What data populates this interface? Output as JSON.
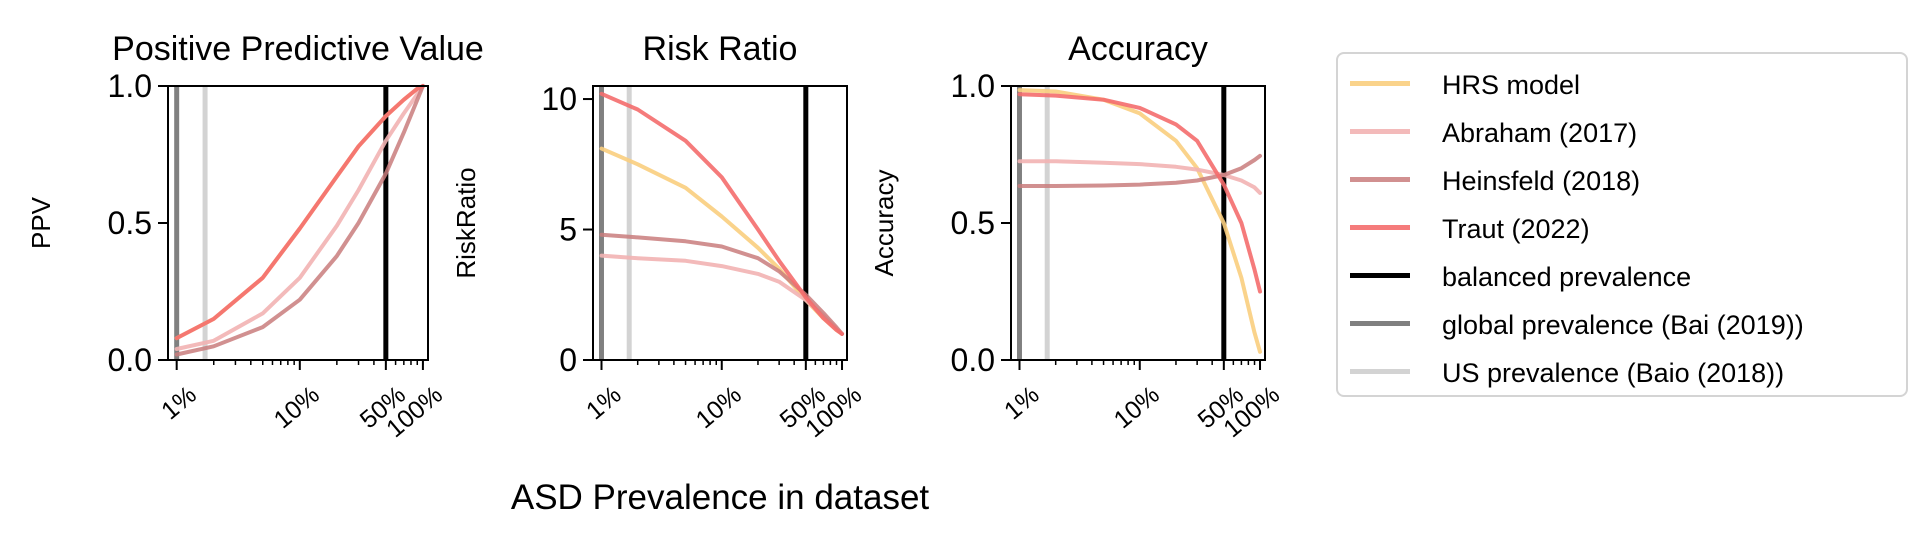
{
  "figure": {
    "xlabel": "ASD Prevalence in dataset"
  },
  "legend": {
    "placement": "right",
    "entries": [
      {
        "label": "HRS model",
        "color": "#f9ce7e",
        "opacity": 0.9
      },
      {
        "label": "Abraham (2017)",
        "color": "#f2b3b3",
        "opacity": 0.9
      },
      {
        "label": "Heinsfeld (2018)",
        "color": "#c97d7d",
        "opacity": 0.85
      },
      {
        "label": "Traut (2022)",
        "color": "#f46d6d",
        "opacity": 0.9
      },
      {
        "label": "balanced prevalence",
        "color": "#000000",
        "opacity": 1
      },
      {
        "label": "global prevalence (Bai (2019))",
        "color": "#808080",
        "opacity": 1
      },
      {
        "label": "US prevalence (Baio (2018))",
        "color": "#d3d3d3",
        "opacity": 1
      }
    ]
  },
  "chart_data": [
    {
      "type": "line",
      "title": "Positive Predictive Value",
      "xlabel": "",
      "ylabel": "PPV",
      "xscale": "log",
      "xlim": [
        0.85,
        110
      ],
      "ylim": [
        0,
        1
      ],
      "xticks": [
        {
          "value": 1,
          "label": "1%"
        },
        {
          "value": 10,
          "label": "10%"
        },
        {
          "value": 50,
          "label": "50%"
        },
        {
          "value": 100,
          "label": "100%"
        }
      ],
      "yticks": [
        {
          "value": 0,
          "label": "0.0"
        },
        {
          "value": 0.5,
          "label": "0.5"
        },
        {
          "value": 1,
          "label": "1.0"
        }
      ],
      "vlines": [
        {
          "x": 50,
          "color": "#000000",
          "legend": "balanced prevalence"
        },
        {
          "x": 1.0,
          "color": "#808080",
          "legend": "global prevalence (Bai (2019))"
        },
        {
          "x": 1.7,
          "color": "#d3d3d3",
          "legend": "US prevalence (Baio (2018))"
        }
      ],
      "series": [
        {
          "name": "HRS model",
          "x": [
            1,
            2,
            5,
            10,
            20,
            30,
            50,
            70,
            90,
            100
          ],
          "y": [
            0.08,
            0.15,
            0.3,
            0.48,
            0.67,
            0.78,
            0.89,
            0.95,
            0.99,
            1.0
          ]
        },
        {
          "name": "Abraham (2017)",
          "x": [
            1,
            2,
            5,
            10,
            20,
            30,
            50,
            70,
            90,
            100
          ],
          "y": [
            0.04,
            0.07,
            0.17,
            0.3,
            0.49,
            0.62,
            0.8,
            0.9,
            0.97,
            1.0
          ]
        },
        {
          "name": "Heinsfeld (2018)",
          "x": [
            1,
            2,
            5,
            10,
            20,
            30,
            50,
            70,
            90,
            100
          ],
          "y": [
            0.02,
            0.05,
            0.12,
            0.22,
            0.38,
            0.5,
            0.68,
            0.83,
            0.95,
            1.0
          ]
        },
        {
          "name": "Traut (2022)",
          "x": [
            1,
            2,
            5,
            10,
            20,
            30,
            50,
            70,
            90,
            100
          ],
          "y": [
            0.08,
            0.15,
            0.3,
            0.48,
            0.67,
            0.78,
            0.89,
            0.95,
            0.99,
            1.0
          ]
        }
      ]
    },
    {
      "type": "line",
      "title": "Risk Ratio",
      "xlabel": "",
      "ylabel": "RiskRatio",
      "xscale": "log",
      "xlim": [
        0.85,
        110
      ],
      "ylim": [
        0,
        10.5
      ],
      "xticks": [
        {
          "value": 1,
          "label": "1%"
        },
        {
          "value": 10,
          "label": "10%"
        },
        {
          "value": 50,
          "label": "50%"
        },
        {
          "value": 100,
          "label": "100%"
        }
      ],
      "yticks": [
        {
          "value": 0,
          "label": "0"
        },
        {
          "value": 5,
          "label": "5"
        },
        {
          "value": 10,
          "label": "10"
        }
      ],
      "vlines": [
        {
          "x": 50,
          "color": "#000000",
          "legend": "balanced prevalence"
        },
        {
          "x": 1.0,
          "color": "#808080",
          "legend": "global prevalence (Bai (2019))"
        },
        {
          "x": 1.7,
          "color": "#d3d3d3",
          "legend": "US prevalence (Baio (2018))"
        }
      ],
      "series": [
        {
          "name": "HRS model",
          "x": [
            1,
            2,
            5,
            10,
            20,
            30,
            50,
            70,
            90,
            100
          ],
          "y": [
            8.1,
            7.5,
            6.6,
            5.5,
            4.3,
            3.5,
            2.3,
            1.6,
            1.15,
            1.0
          ]
        },
        {
          "name": "Abraham (2017)",
          "x": [
            1,
            2,
            5,
            10,
            20,
            30,
            50,
            70,
            90,
            100
          ],
          "y": [
            4.0,
            3.9,
            3.8,
            3.6,
            3.3,
            3.0,
            2.3,
            1.7,
            1.2,
            1.0
          ]
        },
        {
          "name": "Heinsfeld (2018)",
          "x": [
            1,
            2,
            5,
            10,
            20,
            30,
            50,
            70,
            90,
            100
          ],
          "y": [
            4.8,
            4.7,
            4.55,
            4.35,
            3.9,
            3.4,
            2.5,
            1.8,
            1.25,
            1.0
          ]
        },
        {
          "name": "Traut (2022)",
          "x": [
            1,
            2,
            5,
            10,
            20,
            30,
            50,
            70,
            90,
            100
          ],
          "y": [
            10.2,
            9.6,
            8.4,
            7.0,
            5.0,
            3.8,
            2.4,
            1.6,
            1.15,
            1.0
          ]
        }
      ]
    },
    {
      "type": "line",
      "title": "Accuracy",
      "xlabel": "",
      "ylabel": "Accuracy",
      "xscale": "log",
      "xlim": [
        0.85,
        110
      ],
      "ylim": [
        0,
        1
      ],
      "xticks": [
        {
          "value": 1,
          "label": "1%"
        },
        {
          "value": 10,
          "label": "10%"
        },
        {
          "value": 50,
          "label": "50%"
        },
        {
          "value": 100,
          "label": "100%"
        }
      ],
      "yticks": [
        {
          "value": 0,
          "label": "0.0"
        },
        {
          "value": 0.5,
          "label": "0.5"
        },
        {
          "value": 1,
          "label": "1.0"
        }
      ],
      "vlines": [
        {
          "x": 50,
          "color": "#000000",
          "legend": "balanced prevalence"
        },
        {
          "x": 1.0,
          "color": "#808080",
          "legend": "global prevalence (Bai (2019))"
        },
        {
          "x": 1.7,
          "color": "#d3d3d3",
          "legend": "US prevalence (Baio (2018))"
        }
      ],
      "series": [
        {
          "name": "HRS model",
          "x": [
            1,
            2,
            5,
            10,
            20,
            30,
            50,
            70,
            90,
            100
          ],
          "y": [
            0.985,
            0.98,
            0.95,
            0.9,
            0.8,
            0.7,
            0.5,
            0.3,
            0.1,
            0.03
          ]
        },
        {
          "name": "Abraham (2017)",
          "x": [
            1,
            2,
            5,
            10,
            20,
            30,
            50,
            70,
            90,
            100
          ],
          "y": [
            0.725,
            0.725,
            0.72,
            0.715,
            0.705,
            0.695,
            0.675,
            0.655,
            0.63,
            0.61
          ]
        },
        {
          "name": "Heinsfeld (2018)",
          "x": [
            1,
            2,
            5,
            10,
            20,
            30,
            50,
            70,
            90,
            100
          ],
          "y": [
            0.635,
            0.635,
            0.637,
            0.64,
            0.647,
            0.655,
            0.675,
            0.7,
            0.73,
            0.745
          ]
        },
        {
          "name": "Traut (2022)",
          "x": [
            1,
            2,
            5,
            10,
            20,
            30,
            50,
            70,
            90,
            100
          ],
          "y": [
            0.97,
            0.965,
            0.95,
            0.92,
            0.86,
            0.8,
            0.64,
            0.5,
            0.33,
            0.25
          ]
        }
      ]
    }
  ]
}
